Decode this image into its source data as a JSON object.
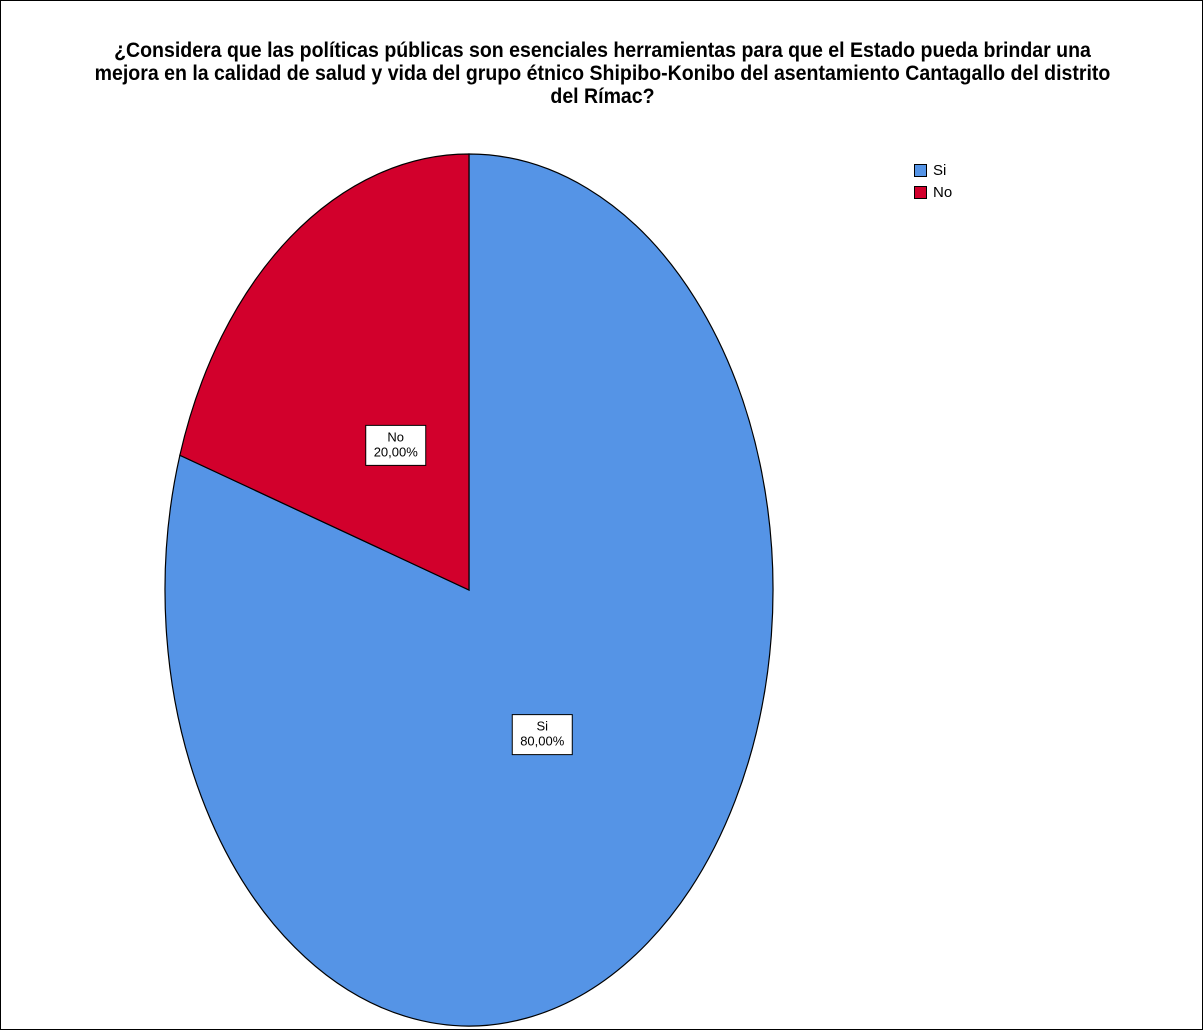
{
  "chart_data": {
    "type": "pie",
    "title_lines": [
      "¿Considera que las políticas públicas son esenciales herramientas para que el Estado pueda brindar una",
      "mejora en la calidad de salud y vida del grupo étnico Shipibo-Konibo del asentamiento Cantagallo del distrito",
      "del Rímac?"
    ],
    "slices": [
      {
        "label": "Si",
        "value": 80.0,
        "display": "80,00%",
        "color": "#5594e6"
      },
      {
        "label": "No",
        "value": 20.0,
        "display": "20,00%",
        "color": "#d2002c"
      }
    ],
    "start_angle_deg": 0,
    "direction": "clockwise",
    "legend": {
      "position": "top-right",
      "items": [
        {
          "label": "Si",
          "color": "#5594e6"
        },
        {
          "label": "No",
          "color": "#d2002c"
        }
      ]
    }
  }
}
